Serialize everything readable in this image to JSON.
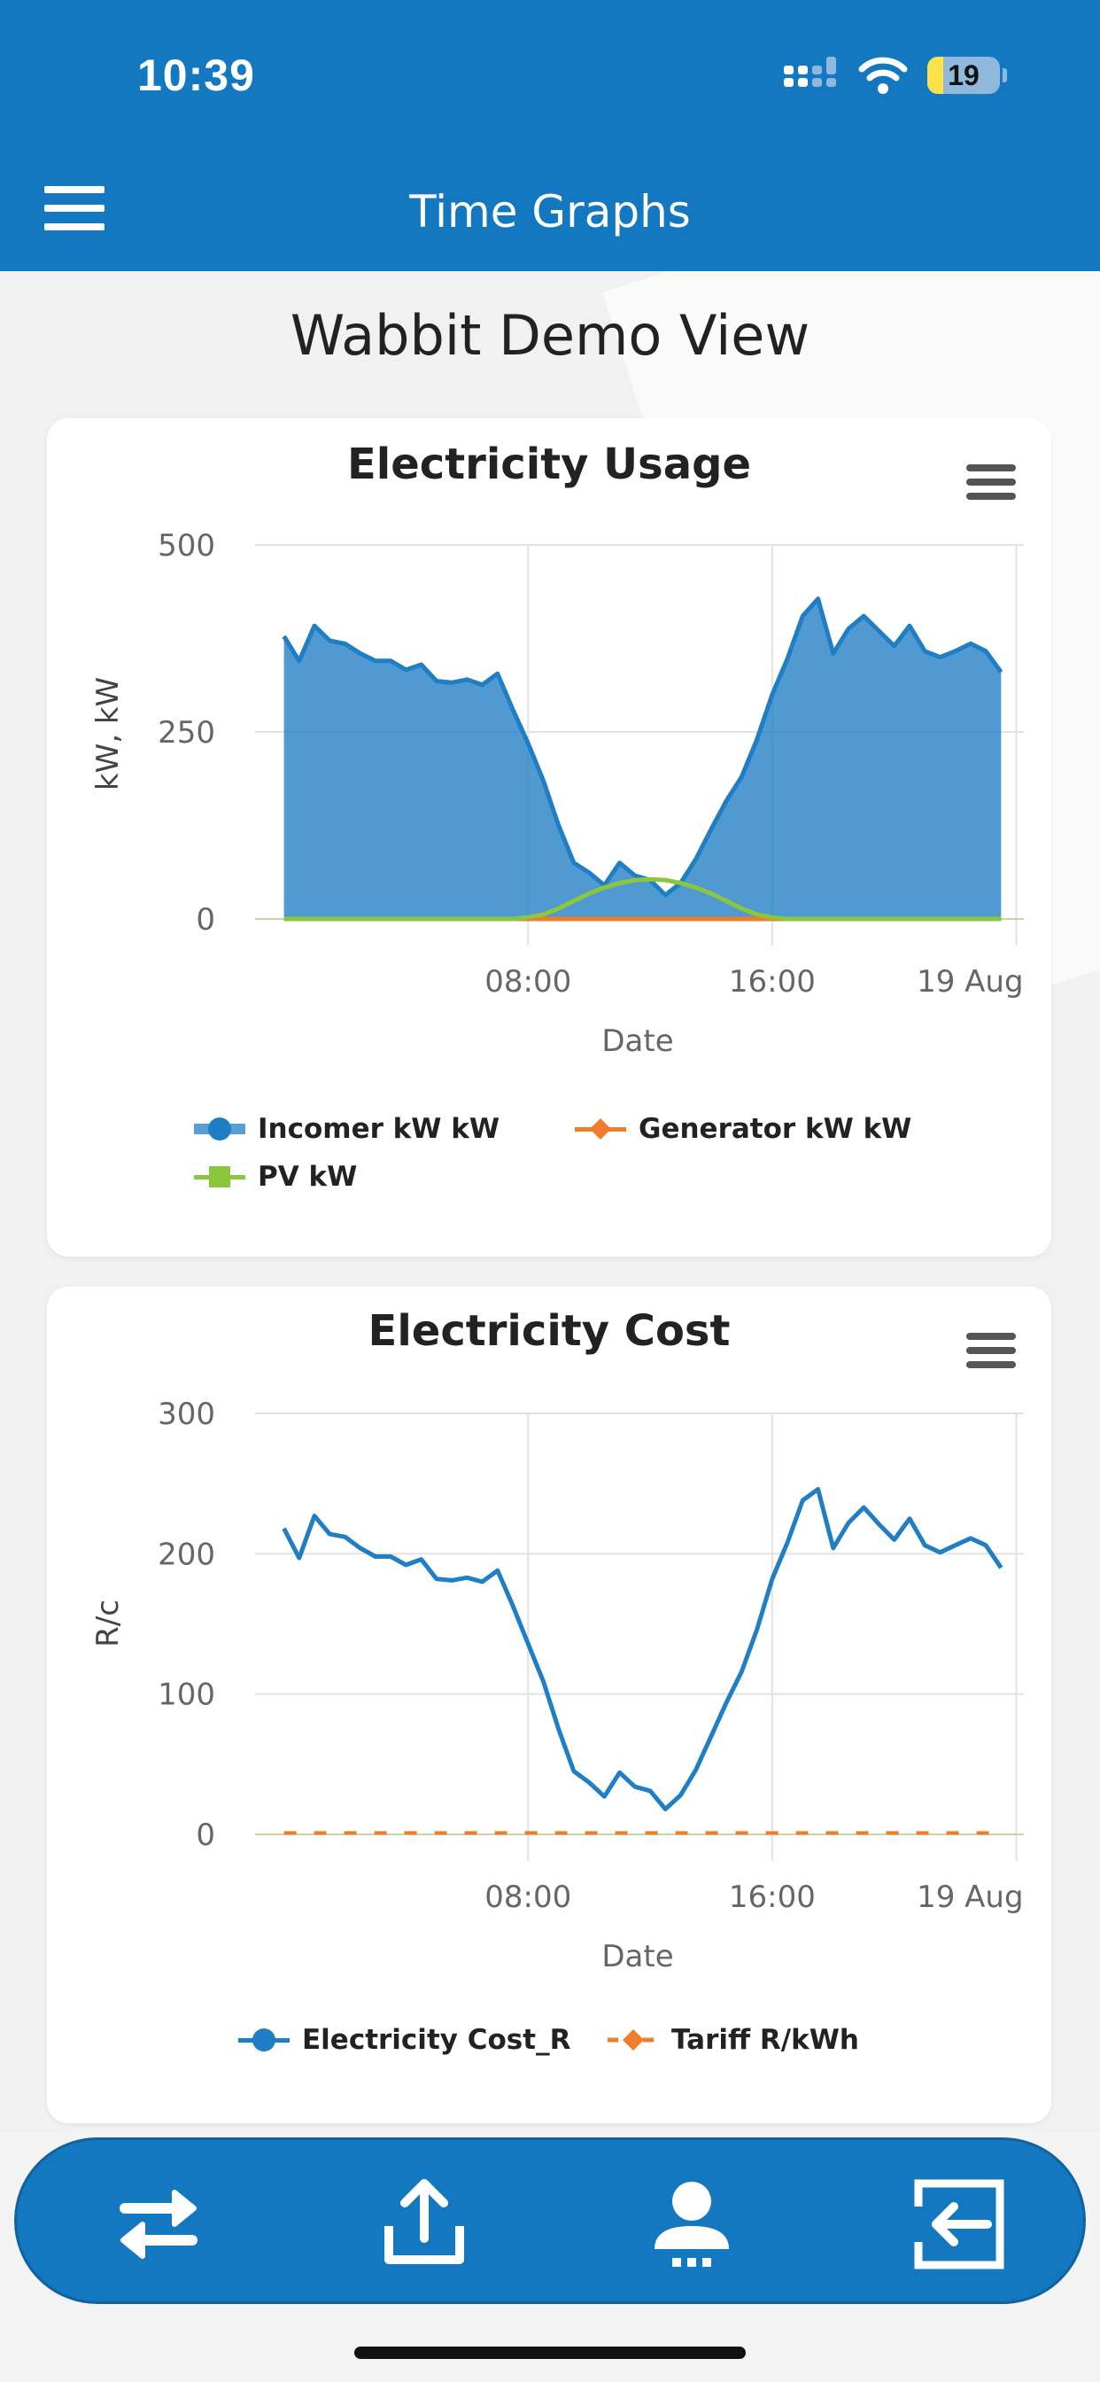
{
  "status_bar": {
    "time": "10:39",
    "battery": "19"
  },
  "header": {
    "title": "Time Graphs",
    "menu_icon": "hamburger-menu-icon"
  },
  "view_title": "Wabbit Demo View",
  "colors": {
    "brand": "#1378bf",
    "incomer": "#1f7ec4",
    "generator": "#f07d2a",
    "pv": "#8cc63f"
  },
  "charts": [
    {
      "title": "Electricity Usage",
      "xlabel": "Date",
      "ylabel": "kW, kW",
      "legend": [
        "Incomer kW kW",
        "Generator kW kW",
        "PV kW"
      ]
    },
    {
      "title": "Electricity Cost",
      "xlabel": "Date",
      "ylabel": "R/c",
      "legend": [
        "Electricity Cost_R",
        "Tariff R/kWh"
      ]
    }
  ],
  "chart_data": [
    {
      "type": "area",
      "title": "Electricity Usage",
      "xlabel": "Date",
      "ylabel": "kW, kW",
      "ylim": [
        0,
        500
      ],
      "yticks": [
        "0",
        "250",
        "500"
      ],
      "xticks": [
        "08:00",
        "16:00",
        "19 Aug"
      ],
      "xtick_hours": [
        8,
        16,
        24
      ],
      "x_hours": [
        0.0,
        0.5,
        1.0,
        1.5,
        2.0,
        2.5,
        3.0,
        3.5,
        4.0,
        4.5,
        5.0,
        5.5,
        6.0,
        6.5,
        7.0,
        7.5,
        8.0,
        8.5,
        9.0,
        9.5,
        10.0,
        10.5,
        11.0,
        11.5,
        12.0,
        12.5,
        13.0,
        13.5,
        14.0,
        14.5,
        15.0,
        15.5,
        16.0,
        16.5,
        17.0,
        17.5,
        18.0,
        18.5,
        19.0,
        19.5,
        20.0,
        20.5,
        21.0,
        21.5,
        22.0,
        22.5,
        23.0,
        23.5
      ],
      "grid": true,
      "legend_position": "bottom",
      "series": [
        {
          "name": "Incomer kW kW",
          "type": "area",
          "color": "#1f7ec4",
          "values": [
            378,
            345,
            392,
            372,
            368,
            355,
            345,
            345,
            333,
            340,
            318,
            316,
            320,
            313,
            328,
            280,
            235,
            185,
            125,
            75,
            62,
            45,
            75,
            58,
            52,
            32,
            48,
            80,
            120,
            158,
            190,
            240,
            300,
            348,
            405,
            428,
            355,
            388,
            405,
            385,
            365,
            392,
            358,
            350,
            358,
            368,
            358,
            330
          ]
        },
        {
          "name": "Generator kW kW",
          "type": "line",
          "color": "#f07d2a",
          "values": [
            0,
            0,
            0,
            0,
            0,
            0,
            0,
            0,
            0,
            0,
            0,
            0,
            0,
            0,
            0,
            0,
            0,
            0,
            0,
            0,
            0,
            0,
            0,
            0,
            0,
            0,
            0,
            0,
            0,
            0,
            0,
            0,
            0,
            0,
            0,
            0,
            0,
            0,
            0,
            0,
            0,
            0,
            0,
            0,
            0,
            0,
            0,
            0
          ]
        },
        {
          "name": "PV kW",
          "type": "line",
          "color": "#8cc63f",
          "values": [
            0,
            0,
            0,
            0,
            0,
            0,
            0,
            0,
            0,
            0,
            0,
            0,
            0,
            0,
            0,
            0,
            2,
            6,
            14,
            24,
            34,
            42,
            48,
            52,
            53,
            52,
            48,
            42,
            34,
            24,
            14,
            6,
            2,
            0,
            0,
            0,
            0,
            0,
            0,
            0,
            0,
            0,
            0,
            0,
            0,
            0,
            0,
            0
          ]
        }
      ]
    },
    {
      "type": "line",
      "title": "Electricity Cost",
      "xlabel": "Date",
      "ylabel": "R/c",
      "ylim": [
        0,
        300
      ],
      "yticks": [
        "0",
        "100",
        "200",
        "300"
      ],
      "xticks": [
        "08:00",
        "16:00",
        "19 Aug"
      ],
      "xtick_hours": [
        8,
        16,
        24
      ],
      "x_hours": [
        0.0,
        0.5,
        1.0,
        1.5,
        2.0,
        2.5,
        3.0,
        3.5,
        4.0,
        4.5,
        5.0,
        5.5,
        6.0,
        6.5,
        7.0,
        7.5,
        8.0,
        8.5,
        9.0,
        9.5,
        10.0,
        10.5,
        11.0,
        11.5,
        12.0,
        12.5,
        13.0,
        13.5,
        14.0,
        14.5,
        15.0,
        15.5,
        16.0,
        16.5,
        17.0,
        17.5,
        18.0,
        18.5,
        19.0,
        19.5,
        20.0,
        20.5,
        21.0,
        21.5,
        22.0,
        22.5,
        23.0,
        23.5
      ],
      "grid": true,
      "legend_position": "bottom",
      "series": [
        {
          "name": "Electricity Cost_R",
          "type": "line",
          "color": "#1f7ec4",
          "values": [
            218,
            197,
            227,
            214,
            212,
            204,
            198,
            198,
            192,
            196,
            182,
            181,
            183,
            180,
            188,
            163,
            136,
            109,
            75,
            45,
            37,
            27,
            44,
            34,
            31,
            18,
            28,
            46,
            70,
            94,
            116,
            146,
            182,
            208,
            238,
            246,
            204,
            222,
            233,
            221,
            210,
            225,
            206,
            201,
            206,
            211,
            206,
            190
          ]
        },
        {
          "name": "Tariff R/kWh",
          "type": "dashed",
          "color": "#f07d2a",
          "values": [
            1,
            1,
            1,
            1,
            1,
            1,
            1,
            1,
            1,
            1,
            1,
            1,
            1,
            1,
            1,
            1,
            1,
            1,
            1,
            1,
            1,
            1,
            1,
            1,
            1,
            1,
            1,
            1,
            1,
            1,
            1,
            1,
            1,
            1,
            1,
            1,
            1,
            1,
            1,
            1,
            1,
            1,
            1,
            1,
            1,
            1,
            1,
            1
          ]
        }
      ]
    }
  ],
  "bottom_nav": [
    {
      "icon": "swap-arrows-icon"
    },
    {
      "icon": "share-upload-icon"
    },
    {
      "icon": "user-support-icon"
    },
    {
      "icon": "logout-icon"
    }
  ]
}
